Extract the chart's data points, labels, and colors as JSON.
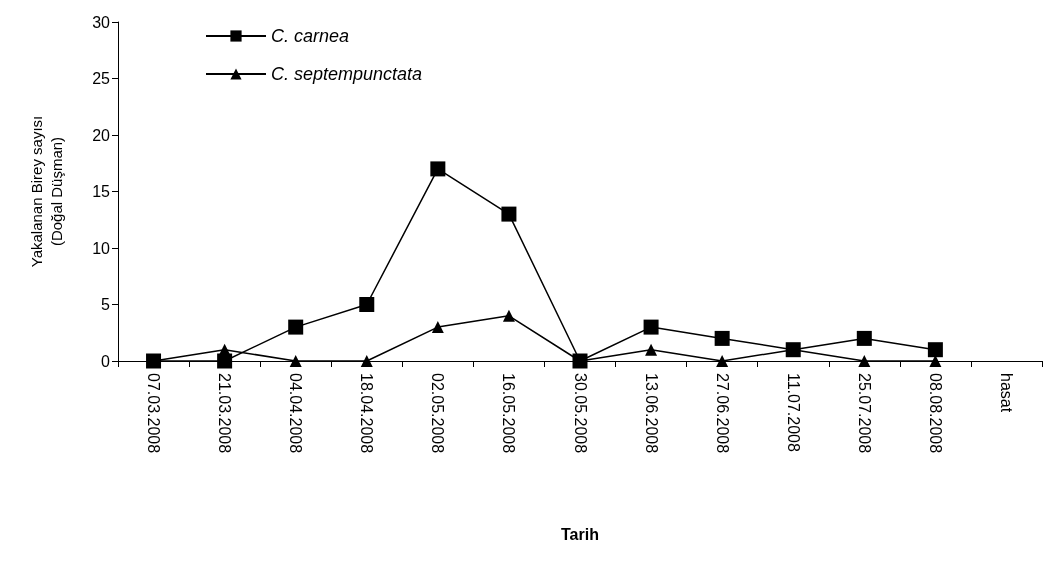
{
  "chart_data": {
    "type": "line",
    "xlabel": "Tarih",
    "ylabel": "Yakalanan Birey sayısı\n(Doğal Düşman)",
    "categories": [
      "07.03.2008",
      "21.03.2008",
      "04.04.2008",
      "18.04.2008",
      "02.05.2008",
      "16.05.2008",
      "30.05.2008",
      "13.06.2008",
      "27.06.2008",
      "11.07.2008",
      "25.07.2008",
      "08.08.2008",
      "hasat"
    ],
    "series": [
      {
        "name": "C. carnea",
        "color": "#000000",
        "marker": "square",
        "values": [
          0,
          0,
          3,
          5,
          17,
          13,
          0,
          3,
          2,
          1,
          2,
          1,
          null
        ]
      },
      {
        "name": "C. septempunctata",
        "color": "#000000",
        "marker": "triangle",
        "values": [
          0,
          1,
          0,
          0,
          3,
          4,
          0,
          1,
          0,
          1,
          0,
          0,
          null
        ]
      }
    ],
    "ylim": [
      0,
      30
    ],
    "yticks": [
      0,
      5,
      10,
      15,
      20,
      25,
      30
    ],
    "grid": false,
    "legend": "top left",
    "line_style": "solid"
  }
}
